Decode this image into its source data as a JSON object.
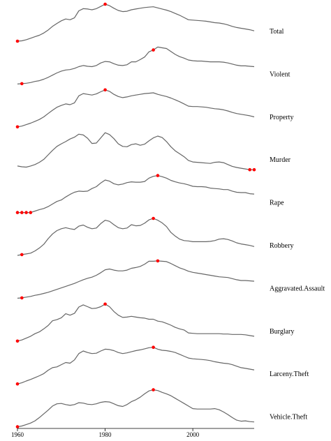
{
  "chart_data": {
    "type": "line",
    "title": "",
    "xlabel": "",
    "ylabel": "",
    "xlim": [
      1960,
      2014
    ],
    "x_ticks": [
      "1960",
      "1980",
      "2000"
    ],
    "x_tick_values": [
      1960,
      1980,
      2000
    ],
    "grid": false,
    "colors": {
      "line": "#666666",
      "marker": "#ff0000",
      "axis": "#000000"
    },
    "years": [
      1960,
      1961,
      1962,
      1963,
      1964,
      1965,
      1966,
      1967,
      1968,
      1969,
      1970,
      1971,
      1972,
      1973,
      1974,
      1975,
      1976,
      1977,
      1978,
      1979,
      1980,
      1981,
      1982,
      1983,
      1984,
      1985,
      1986,
      1987,
      1988,
      1989,
      1990,
      1991,
      1992,
      1993,
      1994,
      1995,
      1996,
      1997,
      1998,
      1999,
      2000,
      2001,
      2002,
      2003,
      2004,
      2005,
      2006,
      2007,
      2008,
      2009,
      2010,
      2011,
      2012,
      2013,
      2014
    ],
    "series": [
      {
        "name": "Total",
        "values": [
          0.0,
          0.01,
          0.04,
          0.08,
          0.12,
          0.16,
          0.22,
          0.3,
          0.4,
          0.48,
          0.55,
          0.6,
          0.58,
          0.63,
          0.82,
          0.88,
          0.87,
          0.85,
          0.88,
          0.94,
          1.0,
          0.96,
          0.89,
          0.83,
          0.8,
          0.81,
          0.85,
          0.87,
          0.89,
          0.91,
          0.92,
          0.93,
          0.9,
          0.87,
          0.84,
          0.8,
          0.75,
          0.7,
          0.64,
          0.58,
          0.57,
          0.56,
          0.55,
          0.54,
          0.52,
          0.5,
          0.49,
          0.47,
          0.44,
          0.4,
          0.37,
          0.35,
          0.33,
          0.31,
          0.28
        ],
        "markers": [
          1960,
          1980
        ]
      },
      {
        "name": "Violent",
        "values": [
          0.0,
          0.01,
          0.02,
          0.04,
          0.07,
          0.09,
          0.13,
          0.18,
          0.24,
          0.3,
          0.35,
          0.38,
          0.39,
          0.42,
          0.47,
          0.5,
          0.48,
          0.47,
          0.5,
          0.57,
          0.61,
          0.6,
          0.55,
          0.51,
          0.5,
          0.52,
          0.6,
          0.6,
          0.66,
          0.73,
          0.87,
          0.92,
          1.0,
          0.98,
          0.96,
          0.88,
          0.8,
          0.74,
          0.7,
          0.65,
          0.63,
          0.62,
          0.62,
          0.61,
          0.6,
          0.6,
          0.6,
          0.59,
          0.57,
          0.54,
          0.51,
          0.49,
          0.49,
          0.48,
          0.47
        ],
        "markers": [
          1961,
          1991
        ]
      },
      {
        "name": "Property",
        "values": [
          0.0,
          0.02,
          0.06,
          0.1,
          0.15,
          0.2,
          0.27,
          0.36,
          0.45,
          0.53,
          0.58,
          0.62,
          0.6,
          0.65,
          0.84,
          0.9,
          0.88,
          0.86,
          0.89,
          0.95,
          1.0,
          0.96,
          0.88,
          0.82,
          0.79,
          0.81,
          0.84,
          0.86,
          0.88,
          0.9,
          0.91,
          0.92,
          0.88,
          0.85,
          0.82,
          0.78,
          0.73,
          0.68,
          0.62,
          0.56,
          0.55,
          0.55,
          0.54,
          0.53,
          0.51,
          0.49,
          0.48,
          0.46,
          0.43,
          0.39,
          0.36,
          0.34,
          0.32,
          0.3,
          0.27
        ],
        "markers": [
          1960,
          1980
        ]
      },
      {
        "name": "Murder",
        "values": [
          0.1,
          0.08,
          0.07,
          0.1,
          0.14,
          0.2,
          0.28,
          0.4,
          0.52,
          0.63,
          0.7,
          0.76,
          0.83,
          0.88,
          0.96,
          0.94,
          0.85,
          0.71,
          0.72,
          0.86,
          1.0,
          0.95,
          0.84,
          0.7,
          0.63,
          0.62,
          0.68,
          0.7,
          0.66,
          0.69,
          0.78,
          0.86,
          0.91,
          0.87,
          0.76,
          0.62,
          0.51,
          0.43,
          0.35,
          0.25,
          0.21,
          0.2,
          0.19,
          0.18,
          0.17,
          0.2,
          0.21,
          0.19,
          0.14,
          0.09,
          0.06,
          0.04,
          0.02,
          0.0,
          0.0
        ],
        "markers": [
          2013,
          2014
        ]
      },
      {
        "name": "Rape",
        "values": [
          0.0,
          0.0,
          0.0,
          0.0,
          0.04,
          0.08,
          0.11,
          0.16,
          0.23,
          0.3,
          0.34,
          0.42,
          0.49,
          0.55,
          0.58,
          0.57,
          0.58,
          0.65,
          0.7,
          0.8,
          0.88,
          0.85,
          0.78,
          0.75,
          0.77,
          0.81,
          0.83,
          0.82,
          0.82,
          0.84,
          0.93,
          0.98,
          1.0,
          0.97,
          0.93,
          0.87,
          0.83,
          0.8,
          0.78,
          0.75,
          0.71,
          0.7,
          0.7,
          0.69,
          0.66,
          0.65,
          0.64,
          0.62,
          0.62,
          0.58,
          0.55,
          0.54,
          0.54,
          0.51,
          0.5
        ],
        "markers": [
          1960,
          1961,
          1962,
          1963,
          1992
        ]
      },
      {
        "name": "Robbery",
        "values": [
          0.0,
          0.02,
          0.04,
          0.06,
          0.12,
          0.2,
          0.3,
          0.45,
          0.58,
          0.67,
          0.72,
          0.75,
          0.72,
          0.7,
          0.79,
          0.82,
          0.76,
          0.72,
          0.74,
          0.86,
          0.95,
          0.92,
          0.83,
          0.75,
          0.72,
          0.74,
          0.83,
          0.8,
          0.81,
          0.87,
          0.96,
          1.0,
          0.95,
          0.88,
          0.78,
          0.62,
          0.52,
          0.44,
          0.4,
          0.39,
          0.37,
          0.37,
          0.37,
          0.37,
          0.38,
          0.4,
          0.44,
          0.45,
          0.43,
          0.39,
          0.34,
          0.31,
          0.29,
          0.27,
          0.24
        ],
        "markers": [
          1961,
          1991
        ]
      },
      {
        "name": "Aggravated.Assault",
        "values": [
          0.0,
          0.01,
          0.03,
          0.05,
          0.08,
          0.1,
          0.13,
          0.16,
          0.2,
          0.24,
          0.28,
          0.32,
          0.36,
          0.4,
          0.45,
          0.5,
          0.54,
          0.57,
          0.62,
          0.69,
          0.77,
          0.79,
          0.76,
          0.74,
          0.74,
          0.76,
          0.81,
          0.83,
          0.86,
          0.92,
          1.0,
          1.0,
          1.01,
          1.0,
          0.99,
          0.94,
          0.88,
          0.82,
          0.78,
          0.73,
          0.7,
          0.68,
          0.66,
          0.64,
          0.62,
          0.6,
          0.58,
          0.57,
          0.56,
          0.53,
          0.5,
          0.48,
          0.48,
          0.47,
          0.46
        ],
        "markers": [
          1961,
          1992
        ]
      },
      {
        "name": "Burglary",
        "values": [
          0.0,
          0.03,
          0.08,
          0.13,
          0.2,
          0.25,
          0.33,
          0.42,
          0.55,
          0.58,
          0.63,
          0.74,
          0.7,
          0.75,
          0.92,
          0.98,
          0.93,
          0.88,
          0.89,
          0.93,
          1.0,
          0.93,
          0.8,
          0.7,
          0.64,
          0.65,
          0.67,
          0.65,
          0.63,
          0.62,
          0.59,
          0.59,
          0.54,
          0.52,
          0.48,
          0.43,
          0.37,
          0.33,
          0.3,
          0.22,
          0.21,
          0.2,
          0.2,
          0.2,
          0.2,
          0.2,
          0.2,
          0.19,
          0.19,
          0.18,
          0.18,
          0.18,
          0.17,
          0.15,
          0.13
        ],
        "markers": [
          1960,
          1980
        ]
      },
      {
        "name": "Larceny.Theft",
        "values": [
          0.0,
          0.03,
          0.08,
          0.12,
          0.17,
          0.22,
          0.28,
          0.37,
          0.44,
          0.46,
          0.52,
          0.58,
          0.56,
          0.65,
          0.82,
          0.89,
          0.85,
          0.82,
          0.83,
          0.89,
          0.94,
          0.93,
          0.9,
          0.85,
          0.82,
          0.84,
          0.87,
          0.9,
          0.92,
          0.95,
          0.98,
          0.99,
          0.94,
          0.91,
          0.9,
          0.88,
          0.85,
          0.8,
          0.75,
          0.7,
          0.68,
          0.67,
          0.66,
          0.65,
          0.63,
          0.6,
          0.58,
          0.56,
          0.55,
          0.52,
          0.48,
          0.44,
          0.42,
          0.4,
          0.38
        ],
        "markers": [
          1960,
          1991
        ]
      },
      {
        "name": "Vehicle.Theft",
        "values": [
          0.0,
          0.02,
          0.06,
          0.1,
          0.16,
          0.25,
          0.35,
          0.45,
          0.56,
          0.62,
          0.63,
          0.6,
          0.58,
          0.6,
          0.65,
          0.64,
          0.61,
          0.6,
          0.62,
          0.66,
          0.68,
          0.67,
          0.62,
          0.57,
          0.55,
          0.6,
          0.68,
          0.73,
          0.8,
          0.89,
          0.97,
          1.0,
          0.98,
          0.93,
          0.89,
          0.84,
          0.77,
          0.7,
          0.63,
          0.56,
          0.49,
          0.48,
          0.48,
          0.48,
          0.48,
          0.49,
          0.46,
          0.4,
          0.33,
          0.25,
          0.18,
          0.15,
          0.16,
          0.14,
          0.13
        ],
        "markers": [
          1960,
          1991
        ]
      }
    ]
  }
}
